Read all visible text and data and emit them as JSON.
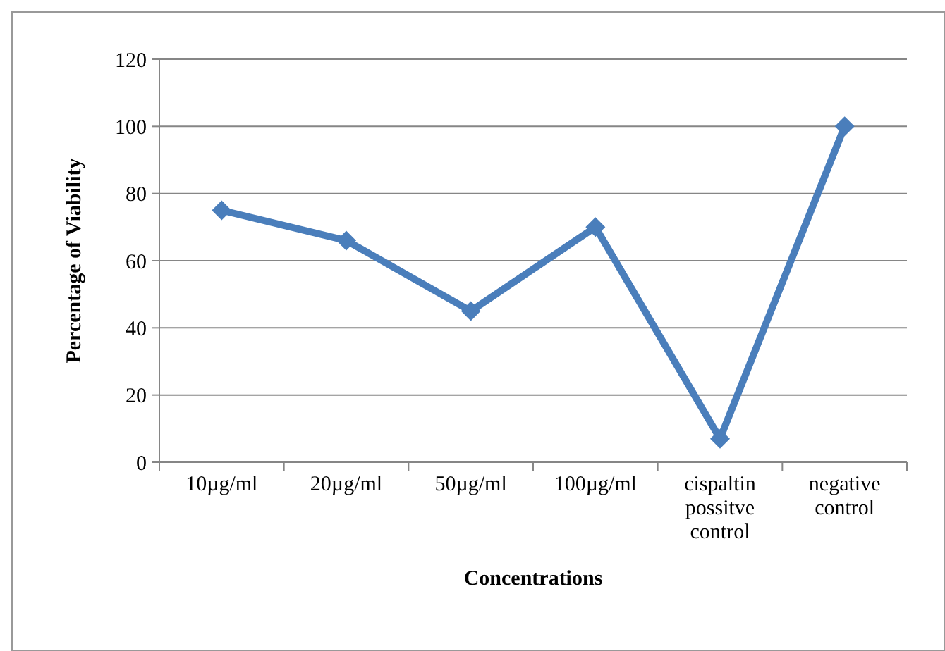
{
  "chart_data": {
    "type": "line",
    "xlabel": "Concentrations",
    "ylabel": "Percentage of Viability",
    "categories": [
      "10µg/ml",
      "20µg/ml",
      "50µg/ml",
      "100µg/ml",
      "cispaltin possitve control",
      "negative control"
    ],
    "series": [
      {
        "color": "#4a7ebb",
        "values": [
          75,
          66,
          45,
          70,
          7,
          100
        ]
      }
    ],
    "ylim": [
      0,
      120
    ],
    "yticks": [
      0,
      20,
      40,
      60,
      80,
      100,
      120
    ],
    "grid": "y",
    "marker": "diamond",
    "line_style": "solid"
  }
}
